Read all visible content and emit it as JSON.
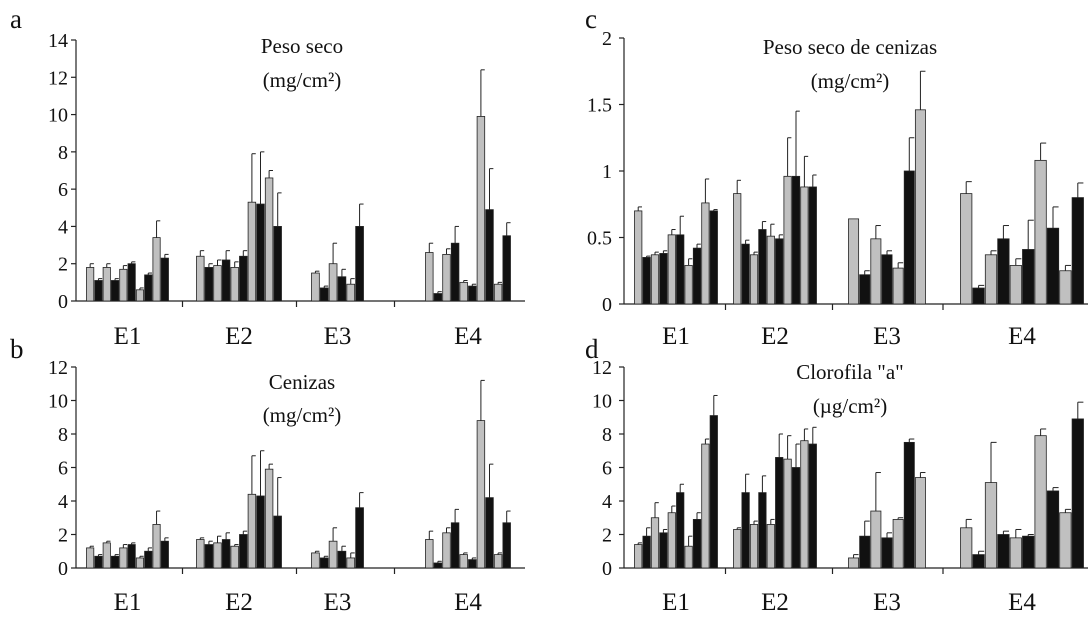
{
  "figure": {
    "bar_colors": {
      "light": "#c0c0c0",
      "dark": "#111111"
    },
    "bar_pattern": [
      "light",
      "dark",
      "light",
      "dark",
      "light",
      "dark",
      "light",
      "dark",
      "light",
      "dark",
      "light",
      "dark"
    ]
  },
  "chart_data": [
    {
      "panel_label": "a",
      "type": "bar",
      "title_lines": [
        "Peso seco",
        "(mg/cm²)"
      ],
      "categories": [
        "E1",
        "E2",
        "E3",
        "E4"
      ],
      "ylim": [
        0,
        14
      ],
      "yticks": [
        "0",
        "2",
        "4",
        "6",
        "8",
        "10",
        "12",
        "14"
      ],
      "ytick_values": [
        0,
        2,
        4,
        6,
        8,
        10,
        12,
        14
      ],
      "grid": false,
      "values": [
        [
          1.8,
          1.1,
          1.8,
          1.1,
          1.7,
          2.0,
          0.6,
          1.4,
          3.4,
          2.3
        ],
        [
          2.4,
          1.8,
          1.9,
          2.2,
          1.8,
          2.4,
          5.3,
          5.2,
          6.6,
          4.0
        ],
        [
          1.5,
          0.7,
          2.0,
          1.3,
          0.9,
          4.0
        ],
        [
          2.6,
          0.4,
          2.5,
          3.1,
          1.0,
          0.8,
          9.9,
          4.9,
          0.9,
          3.5
        ]
      ],
      "errors": [
        [
          0.2,
          0.1,
          0.2,
          0.1,
          0.2,
          0.1,
          0.1,
          0.1,
          0.9,
          0.2
        ],
        [
          0.3,
          0.2,
          0.3,
          0.5,
          0.3,
          0.3,
          2.6,
          2.8,
          0.4,
          1.8
        ],
        [
          0.1,
          0.1,
          1.1,
          0.4,
          0.3,
          1.2
        ],
        [
          0.5,
          0.1,
          0.3,
          0.9,
          0.1,
          0.1,
          2.5,
          2.2,
          0.1,
          0.7
        ]
      ]
    },
    {
      "panel_label": "b",
      "type": "bar",
      "title_lines": [
        "Cenizas",
        "(mg/cm²)"
      ],
      "categories": [
        "E1",
        "E2",
        "E3",
        "E4"
      ],
      "ylim": [
        0,
        12
      ],
      "yticks": [
        "0",
        "2",
        "4",
        "6",
        "8",
        "10",
        "12"
      ],
      "ytick_values": [
        0,
        2,
        4,
        6,
        8,
        10,
        12
      ],
      "grid": false,
      "values": [
        [
          1.2,
          0.7,
          1.5,
          0.7,
          1.2,
          1.4,
          0.6,
          1.0,
          2.6,
          1.6
        ],
        [
          1.7,
          1.4,
          1.5,
          1.7,
          1.3,
          2.0,
          4.4,
          4.3,
          5.9,
          3.1
        ],
        [
          0.9,
          0.6,
          1.6,
          1.0,
          0.6,
          3.6
        ],
        [
          1.7,
          0.3,
          2.1,
          2.7,
          0.8,
          0.5,
          8.8,
          4.2,
          0.8,
          2.7
        ]
      ],
      "errors": [
        [
          0.1,
          0.1,
          0.1,
          0.1,
          0.2,
          0.1,
          0.1,
          0.2,
          0.8,
          0.2
        ],
        [
          0.1,
          0.2,
          0.4,
          0.4,
          0.1,
          0.2,
          2.3,
          2.7,
          0.3,
          2.3
        ],
        [
          0.1,
          0.1,
          0.8,
          0.3,
          0.3,
          0.9
        ],
        [
          0.5,
          0.1,
          0.3,
          0.8,
          0.1,
          0.1,
          2.4,
          2.0,
          0.1,
          0.7
        ]
      ]
    },
    {
      "panel_label": "c",
      "type": "bar",
      "title_lines": [
        "Peso seco de cenizas",
        "(mg/cm²)"
      ],
      "categories": [
        "E1",
        "E2",
        "E3",
        "E4"
      ],
      "ylim": [
        0,
        2
      ],
      "yticks": [
        "0",
        "0.5",
        "1",
        "1.5",
        "2"
      ],
      "ytick_values": [
        0,
        0.5,
        1,
        1.5,
        2
      ],
      "grid": false,
      "values": [
        [
          0.7,
          0.35,
          0.37,
          0.38,
          0.52,
          0.52,
          0.29,
          0.42,
          0.76,
          0.7
        ],
        [
          0.83,
          0.45,
          0.37,
          0.56,
          0.51,
          0.49,
          0.96,
          0.96,
          0.88,
          0.88
        ],
        [
          0.64,
          0.22,
          0.49,
          0.37,
          0.27,
          1.0,
          1.46
        ],
        [
          0.83,
          0.12,
          0.37,
          0.49,
          0.29,
          0.41,
          1.08,
          0.57,
          0.25,
          0.8
        ]
      ],
      "errors": [
        [
          0.03,
          0.01,
          0.02,
          0.02,
          0.04,
          0.14,
          0.05,
          0.03,
          0.18,
          0.01
        ],
        [
          0.1,
          0.03,
          0.02,
          0.06,
          0.09,
          0.03,
          0.29,
          0.49,
          0.23,
          0.09
        ],
        [
          0.0,
          0.03,
          0.1,
          0.03,
          0.04,
          0.25,
          0.29
        ],
        [
          0.09,
          0.02,
          0.03,
          0.1,
          0.05,
          0.22,
          0.13,
          0.16,
          0.04,
          0.11
        ]
      ]
    },
    {
      "panel_label": "d",
      "type": "bar",
      "title_lines": [
        "Clorofila \"a\"",
        "(µg/cm²)"
      ],
      "categories": [
        "E1",
        "E2",
        "E3",
        "E4"
      ],
      "ylim": [
        0,
        12
      ],
      "yticks": [
        "0",
        "2",
        "4",
        "6",
        "8",
        "10",
        "12"
      ],
      "ytick_values": [
        0,
        2,
        4,
        6,
        8,
        10,
        12
      ],
      "grid": false,
      "values": [
        [
          1.4,
          1.9,
          3.0,
          2.1,
          3.3,
          4.5,
          1.3,
          2.9,
          7.4,
          9.1
        ],
        [
          2.3,
          4.5,
          2.6,
          4.5,
          2.6,
          6.6,
          6.5,
          6.0,
          7.6,
          7.4
        ],
        [
          0.6,
          1.9,
          3.4,
          1.8,
          2.9,
          7.5,
          5.4
        ],
        [
          2.4,
          0.8,
          5.1,
          2.0,
          1.8,
          1.9,
          7.9,
          4.6,
          3.3,
          8.9
        ]
      ],
      "errors": [
        [
          0.1,
          0.5,
          0.9,
          0.2,
          0.4,
          0.5,
          0.6,
          0.4,
          0.3,
          1.2
        ],
        [
          0.1,
          1.1,
          0.2,
          1.0,
          0.3,
          1.4,
          1.4,
          1.4,
          0.7,
          1.0
        ],
        [
          0.2,
          0.9,
          2.3,
          0.3,
          0.1,
          0.2,
          0.3
        ],
        [
          0.5,
          0.2,
          2.4,
          0.2,
          0.5,
          0.1,
          0.4,
          0.2,
          0.2,
          1.0
        ]
      ]
    }
  ]
}
